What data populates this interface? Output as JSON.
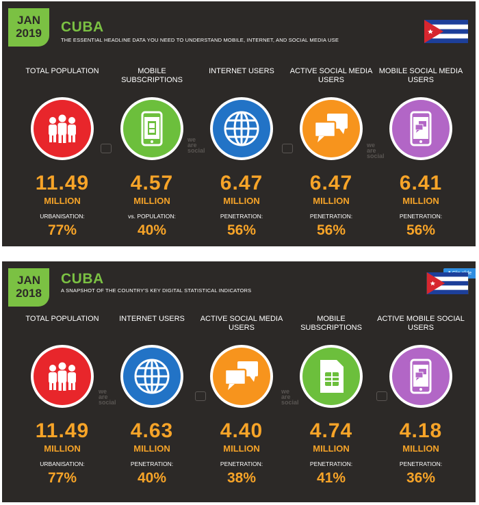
{
  "panels": [
    {
      "badge": {
        "month": "JAN",
        "year": "2019"
      },
      "country": "CUBA",
      "subtitle": "THE ESSENTIAL HEADLINE DATA YOU NEED TO UNDERSTAND MOBILE, INTERNET, AND SOCIAL MEDIA USE",
      "watermark": [
        "we",
        "are",
        "social"
      ],
      "stats": [
        {
          "label": "TOTAL POPULATION",
          "value": "11.49",
          "unit": "MILLION",
          "sublabel": "URBANISATION:",
          "pct": "77%",
          "color": "#e8262b",
          "icon": "people-icon"
        },
        {
          "label": "MOBILE SUBSCRIPTIONS",
          "value": "4.57",
          "unit": "MILLION",
          "sublabel": "vs. POPULATION:",
          "pct": "40%",
          "color": "#6cbf3c",
          "icon": "phone-sim-icon"
        },
        {
          "label": "INTERNET USERS",
          "value": "6.47",
          "unit": "MILLION",
          "sublabel": "PENETRATION:",
          "pct": "56%",
          "color": "#2273c6",
          "icon": "globe-icon"
        },
        {
          "label": "ACTIVE SOCIAL MEDIA USERS",
          "value": "6.47",
          "unit": "MILLION",
          "sublabel": "PENETRATION:",
          "pct": "56%",
          "color": "#f7941d",
          "icon": "chat-bubbles-icon"
        },
        {
          "label": "MOBILE SOCIAL MEDIA USERS",
          "value": "6.41",
          "unit": "MILLION",
          "sublabel": "PENETRATION:",
          "pct": "56%",
          "color": "#b266c6",
          "icon": "phone-chat-icon"
        }
      ]
    },
    {
      "badge": {
        "month": "JAN",
        "year": "2018"
      },
      "country": "CUBA",
      "subtitle": "A SNAPSHOT OF THE COUNTRY'S KEY DIGITAL STATISTICAL INDICATORS",
      "clip_label": "Clip slide",
      "watermark": [
        "we",
        "are",
        "social"
      ],
      "stats": [
        {
          "label": "TOTAL POPULATION",
          "value": "11.49",
          "unit": "MILLION",
          "sublabel": "URBANISATION:",
          "pct": "77%",
          "color": "#e8262b",
          "icon": "people-icon"
        },
        {
          "label": "INTERNET USERS",
          "value": "4.63",
          "unit": "MILLION",
          "sublabel": "PENETRATION:",
          "pct": "40%",
          "color": "#2273c6",
          "icon": "globe-icon"
        },
        {
          "label": "ACTIVE SOCIAL MEDIA USERS",
          "value": "4.40",
          "unit": "MILLION",
          "sublabel": "PENETRATION:",
          "pct": "38%",
          "color": "#f7941d",
          "icon": "chat-bubbles-icon"
        },
        {
          "label": "MOBILE SUBSCRIPTIONS",
          "value": "4.74",
          "unit": "MILLION",
          "sublabel": "PENETRATION:",
          "pct": "41%",
          "color": "#6cbf3c",
          "icon": "sim-card-icon"
        },
        {
          "label": "ACTIVE MOBILE SOCIAL USERS",
          "value": "4.18",
          "unit": "MILLION",
          "sublabel": "PENETRATION:",
          "pct": "36%",
          "color": "#b266c6",
          "icon": "phone-chat-icon"
        }
      ]
    }
  ]
}
